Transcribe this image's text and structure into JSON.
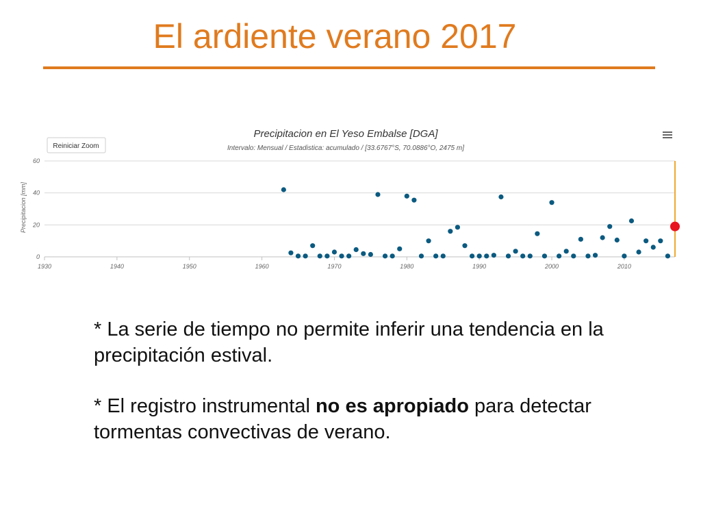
{
  "slide": {
    "title": "El ardiente verano 2017",
    "bullet1": "* La serie de tiempo no permite inferir una tendencia en la precipitación estival.",
    "bullet2_pre": "* El registro instrumental ",
    "bullet2_bold": "no es apropiado",
    "bullet2_post": " para detectar tormentas convectivas de verano.",
    "accent_color": "#e07b1f"
  },
  "chart_ui": {
    "reset_zoom_label": "Reiniciar Zoom",
    "menu_icon": "hamburger-menu-icon",
    "point_color": "#0b5a80",
    "highlight_color": "#e8141e"
  },
  "chart_data": {
    "type": "scatter",
    "title": "Precipitacion en El Yeso Embalse [DGA]",
    "subtitle": "Intervalo: Mensual / Estadistica: acumulado / [33.6767°S, 70.0886°O, 2475 m]",
    "ylabel": "Precipitacion [mm]",
    "xlabel": "",
    "xlim": [
      1930,
      2017
    ],
    "ylim": [
      0,
      60
    ],
    "x_ticks": [
      1930,
      1940,
      1950,
      1960,
      1970,
      1980,
      1990,
      2000,
      2010
    ],
    "y_ticks": [
      0,
      20,
      40,
      60
    ],
    "grid": true,
    "series": [
      {
        "x": [
          1963,
          1964,
          1965,
          1966,
          1967,
          1968,
          1969,
          1970,
          1971,
          1972,
          1973,
          1974,
          1975,
          1976,
          1977,
          1978,
          1979,
          1980,
          1981,
          1982,
          1983,
          1984,
          1985,
          1986,
          1987,
          1988,
          1989,
          1990,
          1991,
          1992,
          1993,
          1994,
          1995,
          1996,
          1997,
          1998,
          1999,
          2000,
          2001,
          2002,
          2003,
          2004,
          2005,
          2006,
          2007,
          2008,
          2009,
          2010,
          2011,
          2012,
          2013,
          2014,
          2015,
          2016
        ],
        "y": [
          42,
          2.5,
          0.5,
          0.5,
          7,
          0.5,
          0.5,
          3,
          0.5,
          0.5,
          4.5,
          2,
          1.5,
          39,
          0.5,
          0.5,
          5,
          38,
          35.5,
          0.5,
          10,
          0.5,
          0.5,
          16,
          18.5,
          7,
          0.5,
          0.5,
          0.5,
          1,
          37.5,
          0.5,
          3.5,
          0.5,
          0.5,
          14.5,
          0.5,
          34,
          0.5,
          3.5,
          0.5,
          11,
          0.5,
          1,
          12,
          19,
          10.5,
          0.5,
          22.5,
          3,
          10,
          6,
          10,
          0.5
        ]
      }
    ],
    "highlight": {
      "x": 2017,
      "y": 19
    }
  }
}
